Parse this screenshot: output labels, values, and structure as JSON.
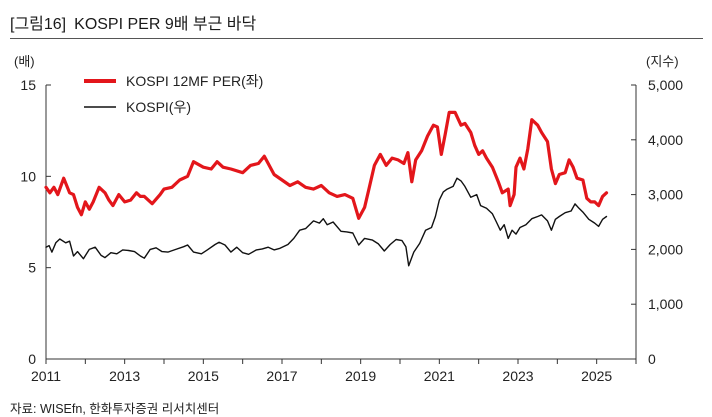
{
  "header": {
    "figure_label": "[그림16]",
    "title": "KOSPI PER 9배 부근 바닥"
  },
  "source": "자료: WISEfn, 한화투자증권 리서치센터",
  "chart_data": {
    "type": "line",
    "title": "KOSPI PER 9배 부근 바닥",
    "xlabel": "",
    "x_ticks": [
      "2011",
      "2013",
      "2015",
      "2017",
      "2019",
      "2021",
      "2023",
      "2025"
    ],
    "xlim": [
      2011,
      2026
    ],
    "left_axis": {
      "unit": "(배)",
      "ylim": [
        0,
        15
      ],
      "ticks": [
        "0",
        "5",
        "10",
        "15"
      ]
    },
    "right_axis": {
      "unit": "(지수)",
      "ylim": [
        0,
        5000
      ],
      "ticks": [
        "0",
        "1,000",
        "2,000",
        "3,000",
        "4,000",
        "5,000"
      ]
    },
    "legend_position": "top-left",
    "series": [
      {
        "name": "KOSPI 12MF PER(좌)",
        "axis": "left",
        "color": "#e3161b",
        "points": [
          [
            2011.0,
            9.4
          ],
          [
            2011.1,
            9.1
          ],
          [
            2011.2,
            9.4
          ],
          [
            2011.3,
            9.0
          ],
          [
            2011.45,
            9.9
          ],
          [
            2011.6,
            9.1
          ],
          [
            2011.7,
            9.0
          ],
          [
            2011.8,
            8.3
          ],
          [
            2011.9,
            7.9
          ],
          [
            2012.0,
            8.6
          ],
          [
            2012.1,
            8.2
          ],
          [
            2012.2,
            8.6
          ],
          [
            2012.35,
            9.4
          ],
          [
            2012.5,
            9.1
          ],
          [
            2012.6,
            8.7
          ],
          [
            2012.7,
            8.4
          ],
          [
            2012.85,
            9.0
          ],
          [
            2013.0,
            8.6
          ],
          [
            2013.15,
            8.7
          ],
          [
            2013.3,
            9.1
          ],
          [
            2013.4,
            8.9
          ],
          [
            2013.5,
            8.9
          ],
          [
            2013.7,
            8.5
          ],
          [
            2013.9,
            9.0
          ],
          [
            2014.0,
            9.3
          ],
          [
            2014.2,
            9.4
          ],
          [
            2014.4,
            9.8
          ],
          [
            2014.6,
            10.0
          ],
          [
            2014.75,
            10.8
          ],
          [
            2015.0,
            10.5
          ],
          [
            2015.2,
            10.4
          ],
          [
            2015.35,
            10.8
          ],
          [
            2015.5,
            10.5
          ],
          [
            2015.7,
            10.4
          ],
          [
            2016.0,
            10.2
          ],
          [
            2016.2,
            10.6
          ],
          [
            2016.4,
            10.7
          ],
          [
            2016.55,
            11.1
          ],
          [
            2016.8,
            10.1
          ],
          [
            2017.0,
            9.8
          ],
          [
            2017.2,
            9.5
          ],
          [
            2017.4,
            9.7
          ],
          [
            2017.6,
            9.4
          ],
          [
            2017.8,
            9.3
          ],
          [
            2018.0,
            9.5
          ],
          [
            2018.2,
            9.1
          ],
          [
            2018.4,
            8.9
          ],
          [
            2018.6,
            9.0
          ],
          [
            2018.8,
            8.8
          ],
          [
            2018.95,
            7.7
          ],
          [
            2019.1,
            8.3
          ],
          [
            2019.2,
            9.2
          ],
          [
            2019.35,
            10.6
          ],
          [
            2019.5,
            11.2
          ],
          [
            2019.65,
            10.6
          ],
          [
            2019.8,
            11.0
          ],
          [
            2019.95,
            10.9
          ],
          [
            2020.1,
            10.7
          ],
          [
            2020.2,
            11.3
          ],
          [
            2020.3,
            9.7
          ],
          [
            2020.4,
            10.9
          ],
          [
            2020.55,
            11.4
          ],
          [
            2020.7,
            12.2
          ],
          [
            2020.85,
            12.8
          ],
          [
            2020.95,
            12.7
          ],
          [
            2021.05,
            11.2
          ],
          [
            2021.15,
            12.3
          ],
          [
            2021.25,
            13.5
          ],
          [
            2021.4,
            13.5
          ],
          [
            2021.55,
            12.8
          ],
          [
            2021.65,
            12.9
          ],
          [
            2021.8,
            12.4
          ],
          [
            2021.9,
            11.7
          ],
          [
            2022.0,
            11.2
          ],
          [
            2022.1,
            11.4
          ],
          [
            2022.2,
            11.0
          ],
          [
            2022.35,
            10.5
          ],
          [
            2022.5,
            9.7
          ],
          [
            2022.6,
            9.1
          ],
          [
            2022.75,
            9.3
          ],
          [
            2022.8,
            8.4
          ],
          [
            2022.9,
            9.0
          ],
          [
            2022.95,
            10.5
          ],
          [
            2023.05,
            11.0
          ],
          [
            2023.15,
            10.4
          ],
          [
            2023.25,
            11.5
          ],
          [
            2023.35,
            13.1
          ],
          [
            2023.5,
            12.8
          ],
          [
            2023.6,
            12.4
          ],
          [
            2023.75,
            11.9
          ],
          [
            2023.85,
            10.4
          ],
          [
            2023.95,
            9.6
          ],
          [
            2024.05,
            10.1
          ],
          [
            2024.2,
            10.2
          ],
          [
            2024.3,
            10.9
          ],
          [
            2024.4,
            10.5
          ],
          [
            2024.5,
            9.9
          ],
          [
            2024.65,
            9.8
          ],
          [
            2024.75,
            8.8
          ],
          [
            2024.85,
            8.6
          ],
          [
            2024.95,
            8.6
          ],
          [
            2025.05,
            8.4
          ],
          [
            2025.15,
            8.9
          ],
          [
            2025.25,
            9.1
          ]
        ]
      },
      {
        "name": "KOSPI(우)",
        "axis": "right",
        "color": "#111111",
        "points": [
          [
            2011.0,
            2040
          ],
          [
            2011.08,
            2070
          ],
          [
            2011.15,
            1950
          ],
          [
            2011.25,
            2120
          ],
          [
            2011.35,
            2190
          ],
          [
            2011.5,
            2120
          ],
          [
            2011.6,
            2150
          ],
          [
            2011.7,
            1880
          ],
          [
            2011.8,
            1960
          ],
          [
            2011.95,
            1830
          ],
          [
            2012.1,
            2000
          ],
          [
            2012.25,
            2040
          ],
          [
            2012.4,
            1890
          ],
          [
            2012.5,
            1850
          ],
          [
            2012.65,
            1940
          ],
          [
            2012.8,
            1920
          ],
          [
            2012.95,
            1990
          ],
          [
            2013.1,
            1980
          ],
          [
            2013.25,
            1960
          ],
          [
            2013.4,
            1880
          ],
          [
            2013.5,
            1840
          ],
          [
            2013.65,
            2000
          ],
          [
            2013.8,
            2030
          ],
          [
            2013.95,
            1960
          ],
          [
            2014.1,
            1950
          ],
          [
            2014.3,
            2000
          ],
          [
            2014.5,
            2050
          ],
          [
            2014.6,
            2080
          ],
          [
            2014.75,
            1950
          ],
          [
            2014.95,
            1920
          ],
          [
            2015.1,
            1990
          ],
          [
            2015.3,
            2090
          ],
          [
            2015.4,
            2130
          ],
          [
            2015.55,
            2080
          ],
          [
            2015.7,
            1950
          ],
          [
            2015.85,
            2040
          ],
          [
            2016.0,
            1940
          ],
          [
            2016.15,
            1910
          ],
          [
            2016.35,
            1990
          ],
          [
            2016.5,
            2010
          ],
          [
            2016.65,
            2040
          ],
          [
            2016.8,
            1990
          ],
          [
            2016.95,
            2020
          ],
          [
            2017.15,
            2090
          ],
          [
            2017.3,
            2200
          ],
          [
            2017.45,
            2350
          ],
          [
            2017.6,
            2380
          ],
          [
            2017.8,
            2520
          ],
          [
            2017.95,
            2480
          ],
          [
            2018.05,
            2560
          ],
          [
            2018.15,
            2450
          ],
          [
            2018.3,
            2500
          ],
          [
            2018.5,
            2330
          ],
          [
            2018.65,
            2320
          ],
          [
            2018.8,
            2300
          ],
          [
            2018.95,
            2080
          ],
          [
            2019.1,
            2200
          ],
          [
            2019.3,
            2170
          ],
          [
            2019.45,
            2100
          ],
          [
            2019.6,
            1970
          ],
          [
            2019.75,
            2090
          ],
          [
            2019.9,
            2180
          ],
          [
            2020.05,
            2160
          ],
          [
            2020.15,
            2050
          ],
          [
            2020.22,
            1700
          ],
          [
            2020.35,
            1950
          ],
          [
            2020.5,
            2110
          ],
          [
            2020.65,
            2350
          ],
          [
            2020.8,
            2400
          ],
          [
            2020.9,
            2600
          ],
          [
            2021.0,
            2900
          ],
          [
            2021.1,
            3050
          ],
          [
            2021.2,
            3100
          ],
          [
            2021.35,
            3150
          ],
          [
            2021.45,
            3300
          ],
          [
            2021.55,
            3250
          ],
          [
            2021.65,
            3150
          ],
          [
            2021.8,
            2950
          ],
          [
            2021.95,
            3000
          ],
          [
            2022.05,
            2800
          ],
          [
            2022.2,
            2750
          ],
          [
            2022.35,
            2650
          ],
          [
            2022.45,
            2500
          ],
          [
            2022.55,
            2350
          ],
          [
            2022.65,
            2450
          ],
          [
            2022.75,
            2200
          ],
          [
            2022.85,
            2350
          ],
          [
            2022.95,
            2280
          ],
          [
            2023.05,
            2400
          ],
          [
            2023.2,
            2450
          ],
          [
            2023.35,
            2560
          ],
          [
            2023.5,
            2600
          ],
          [
            2023.6,
            2630
          ],
          [
            2023.75,
            2520
          ],
          [
            2023.85,
            2350
          ],
          [
            2023.95,
            2550
          ],
          [
            2024.05,
            2600
          ],
          [
            2024.2,
            2670
          ],
          [
            2024.35,
            2700
          ],
          [
            2024.45,
            2830
          ],
          [
            2024.55,
            2750
          ],
          [
            2024.65,
            2680
          ],
          [
            2024.8,
            2550
          ],
          [
            2024.95,
            2480
          ],
          [
            2025.05,
            2420
          ],
          [
            2025.15,
            2550
          ],
          [
            2025.25,
            2600
          ]
        ]
      }
    ]
  }
}
